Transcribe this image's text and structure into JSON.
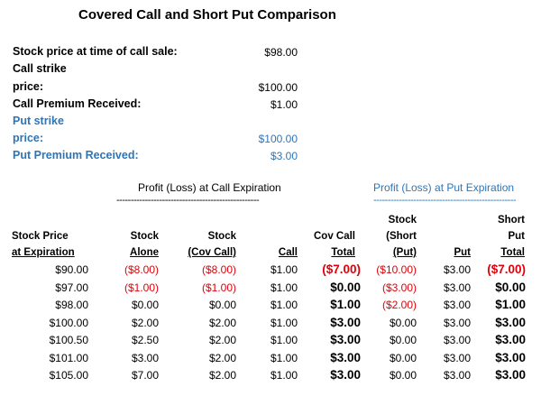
{
  "title": "Covered Call and Short Put Comparison",
  "inputs": {
    "stock_price_label": "Stock price at time of call sale:",
    "stock_price_value": "$98.00",
    "call_strike_label_line1": "Call strike",
    "call_strike_label_line2": "price:",
    "call_strike_value": "$100.00",
    "call_premium_label": "Call Premium Received:",
    "call_premium_value": "$1.00",
    "put_strike_label_line1": "Put strike",
    "put_strike_label_line2": "price:",
    "put_strike_value": "$100.00",
    "put_premium_label": "Put Premium Received:",
    "put_premium_value": "$3.00"
  },
  "sections": {
    "call_title": "Profit (Loss) at Call Expiration",
    "call_dashes": "--------------------------------------------------",
    "put_title": "Profit (Loss) at Put Expiration",
    "put_dashes": "--------------------------------------------------"
  },
  "headers": {
    "stock_price": [
      "Stock Price",
      "at Expiration"
    ],
    "stock_alone": [
      "Stock",
      "Alone"
    ],
    "stock_cov_call": [
      "Stock",
      "(Cov Call)"
    ],
    "call": [
      "Call"
    ],
    "cov_call_total": [
      "Cov Call",
      "Total"
    ],
    "stock_short_put": [
      "Stock",
      "(Short",
      "(Put)"
    ],
    "put": [
      "Put"
    ],
    "short_put_total": [
      "Short",
      "Put",
      "Total"
    ]
  },
  "colors": {
    "blue": "#2E75B6",
    "red": "#E0000B"
  },
  "rows": [
    [
      "$90.00",
      "($8.00)",
      "($8.00)",
      "$1.00",
      "($7.00)",
      "($10.00)",
      "$3.00",
      "($7.00)"
    ],
    [
      "$97.00",
      "($1.00)",
      "($1.00)",
      "$1.00",
      "$0.00",
      "($3.00)",
      "$3.00",
      "$0.00"
    ],
    [
      "$98.00",
      "$0.00",
      "$0.00",
      "$1.00",
      "$1.00",
      "($2.00)",
      "$3.00",
      "$1.00"
    ],
    [
      "$100.00",
      "$2.00",
      "$2.00",
      "$1.00",
      "$3.00",
      "$0.00",
      "$3.00",
      "$3.00"
    ],
    [
      "$100.50",
      "$2.50",
      "$2.00",
      "$1.00",
      "$3.00",
      "$0.00",
      "$3.00",
      "$3.00"
    ],
    [
      "$101.00",
      "$3.00",
      "$2.00",
      "$1.00",
      "$3.00",
      "$0.00",
      "$3.00",
      "$3.00"
    ],
    [
      "$105.00",
      "$7.00",
      "$2.00",
      "$1.00",
      "$3.00",
      "$0.00",
      "$3.00",
      "$3.00"
    ]
  ]
}
